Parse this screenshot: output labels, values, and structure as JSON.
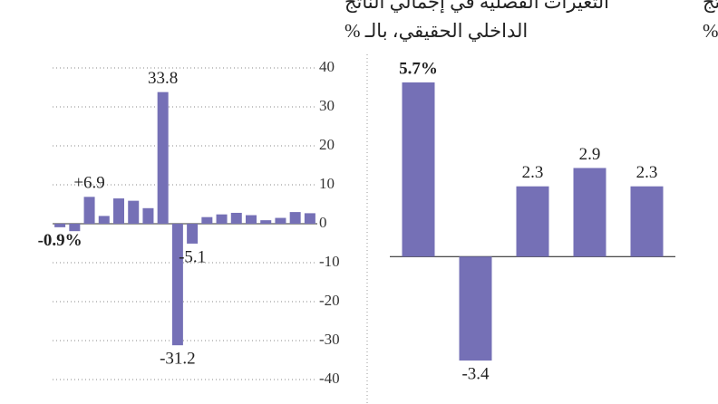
{
  "chart_data": [
    {
      "type": "bar",
      "title": [
        "التغيرات الفصلية في إجمالي الناتج",
        "الداخلي الحقيقي، بالـ %"
      ],
      "values": [
        -0.9,
        -1.9,
        6.9,
        2.0,
        6.5,
        5.9,
        4.0,
        33.8,
        -31.2,
        -5.1,
        1.7,
        2.4,
        2.8,
        2.2,
        0.9,
        1.5,
        3.0,
        2.7
      ],
      "value_labels": [
        "-0.9%",
        null,
        "+6.9",
        null,
        null,
        null,
        null,
        "33.8",
        "-31.2",
        "-5.1",
        null,
        null,
        null,
        null,
        null,
        null,
        null,
        null
      ],
      "color": "#7570b6",
      "ylim": [
        -40,
        40
      ],
      "yticks": [
        40,
        30,
        20,
        10,
        0,
        -10,
        -20,
        -30,
        -40
      ],
      "grid": true
    },
    {
      "type": "bar",
      "title": [
        "التغيرات السنوية في إجمالي الناتج",
        "الداخلي الحقيقي، بالـ %"
      ],
      "values": [
        5.7,
        -3.4,
        2.3,
        2.9,
        2.3
      ],
      "value_labels": [
        "5.7%",
        "-3.4",
        "2.3",
        "2.9",
        "2.3"
      ],
      "color": "#7570b6"
    }
  ]
}
